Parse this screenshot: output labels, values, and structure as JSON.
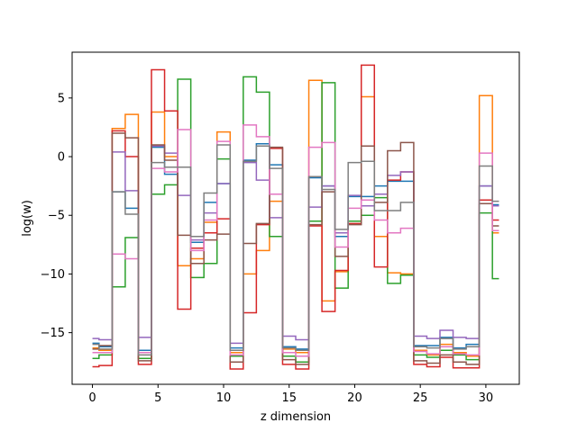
{
  "chart_data": {
    "type": "line",
    "drawstyle": "steps-mid",
    "title": "",
    "xlabel": "z dimension",
    "ylabel": "log(w)",
    "xlim": [
      -1.55,
      32.55
    ],
    "ylim": [
      -19.4,
      8.9
    ],
    "xticks": [
      0,
      5,
      10,
      15,
      20,
      25,
      30
    ],
    "yticks": [
      5,
      0,
      -5,
      -10,
      -15
    ],
    "ytick_labels": [
      "5",
      "0",
      "−5",
      "−10",
      "−15"
    ],
    "grid": false,
    "legend": "none",
    "x": [
      0,
      1,
      2,
      3,
      4,
      5,
      6,
      7,
      8,
      9,
      10,
      11,
      12,
      13,
      14,
      15,
      16,
      17,
      18,
      19,
      20,
      21,
      22,
      23,
      24,
      25,
      26,
      27,
      28,
      29,
      30,
      31
    ],
    "series": [
      {
        "color": "#1f77b4",
        "values": [
          -15.9,
          -16.2,
          -3.0,
          -4.4,
          -16.5,
          0.8,
          -1.5,
          -0.9,
          -7.3,
          -3.9,
          -2.3,
          -16.3,
          -0.3,
          1.1,
          -0.7,
          -16.2,
          -16.4,
          -1.8,
          -2.5,
          -6.8,
          -3.4,
          -3.4,
          -2.5,
          -2.1,
          -2.1,
          -16.1,
          -16.1,
          -15.4,
          -16.3,
          -16.0,
          -2.5,
          -4.1
        ]
      },
      {
        "color": "#ff7f0e",
        "values": [
          -16.3,
          -16.5,
          2.4,
          3.6,
          -16.7,
          3.8,
          0.0,
          -9.3,
          -8.7,
          -5.6,
          2.1,
          -16.7,
          -10.0,
          -8.0,
          -3.8,
          -16.4,
          -16.7,
          6.5,
          -12.3,
          -9.8,
          -5.5,
          5.1,
          -6.8,
          -9.9,
          -10.0,
          -16.5,
          -16.9,
          -16.0,
          -16.7,
          -17.0,
          5.2,
          -6.5
        ]
      },
      {
        "color": "#2ca02c",
        "values": [
          -17.2,
          -16.9,
          -11.1,
          -6.9,
          -17.2,
          -3.2,
          -2.4,
          6.6,
          -10.3,
          -9.1,
          -0.2,
          -17.0,
          6.8,
          5.5,
          -6.8,
          -17.0,
          -17.5,
          -5.5,
          6.3,
          -11.2,
          -5.5,
          -5.0,
          -3.5,
          -10.8,
          -10.1,
          -16.9,
          -17.1,
          -16.5,
          -16.9,
          -17.3,
          -4.8,
          -10.4
        ]
      },
      {
        "color": "#d62728",
        "values": [
          -17.9,
          -17.8,
          2.2,
          0.0,
          -17.7,
          7.4,
          3.9,
          -13.0,
          -7.8,
          -6.5,
          -5.3,
          -18.1,
          -13.3,
          -5.8,
          0.7,
          -17.7,
          -18.1,
          -5.9,
          -13.2,
          -9.7,
          -5.7,
          7.8,
          -9.4,
          -2.0,
          -1.3,
          -17.7,
          -17.9,
          -17.1,
          -18.0,
          -18.0,
          -3.7,
          -5.4
        ]
      },
      {
        "color": "#9467bd",
        "values": [
          -15.5,
          -15.6,
          0.4,
          -2.9,
          -15.4,
          0.9,
          0.3,
          -3.3,
          -7.1,
          -4.8,
          -2.3,
          -15.9,
          -0.5,
          -2.0,
          -5.2,
          -15.3,
          -15.6,
          -4.3,
          -2.5,
          -6.5,
          -3.3,
          -4.2,
          -3.2,
          -1.6,
          -1.3,
          -15.3,
          -15.5,
          -14.8,
          -15.4,
          -15.5,
          -2.5,
          -4.2
        ]
      },
      {
        "color": "#8c564b",
        "values": [
          -16.4,
          -16.1,
          2.0,
          1.6,
          -17.4,
          1.0,
          -0.3,
          -6.7,
          -9.1,
          -7.1,
          -6.6,
          -17.5,
          -7.4,
          -5.7,
          0.8,
          -17.3,
          -17.7,
          -5.8,
          -3.0,
          -8.5,
          -5.8,
          0.9,
          -3.9,
          0.5,
          1.2,
          -17.4,
          -17.6,
          -16.9,
          -17.5,
          -17.7,
          -4.0,
          -5.9
        ]
      },
      {
        "color": "#e377c2",
        "values": [
          -16.7,
          -16.7,
          -8.3,
          -8.7,
          -16.7,
          -1.0,
          -1.3,
          2.3,
          -8.0,
          -5.4,
          1.3,
          -16.9,
          2.7,
          1.7,
          -3.2,
          -16.7,
          -17.0,
          0.8,
          1.2,
          -7.7,
          -4.4,
          -3.7,
          -5.4,
          -6.5,
          -6.1,
          -16.6,
          -16.8,
          -16.2,
          -16.8,
          -16.9,
          0.3,
          -6.3
        ]
      },
      {
        "color": "#7f7f7f",
        "values": [
          -16.0,
          -16.4,
          -3.0,
          -4.9,
          -16.9,
          -0.5,
          -0.9,
          -0.9,
          -6.8,
          -3.1,
          1.0,
          -16.5,
          -0.4,
          0.9,
          -1.0,
          -16.3,
          -16.5,
          -1.7,
          -2.8,
          -6.2,
          -0.5,
          -0.4,
          -4.6,
          -4.6,
          -3.9,
          -16.2,
          -16.3,
          -15.5,
          -16.4,
          -16.2,
          -0.8,
          -3.8
        ]
      }
    ]
  }
}
